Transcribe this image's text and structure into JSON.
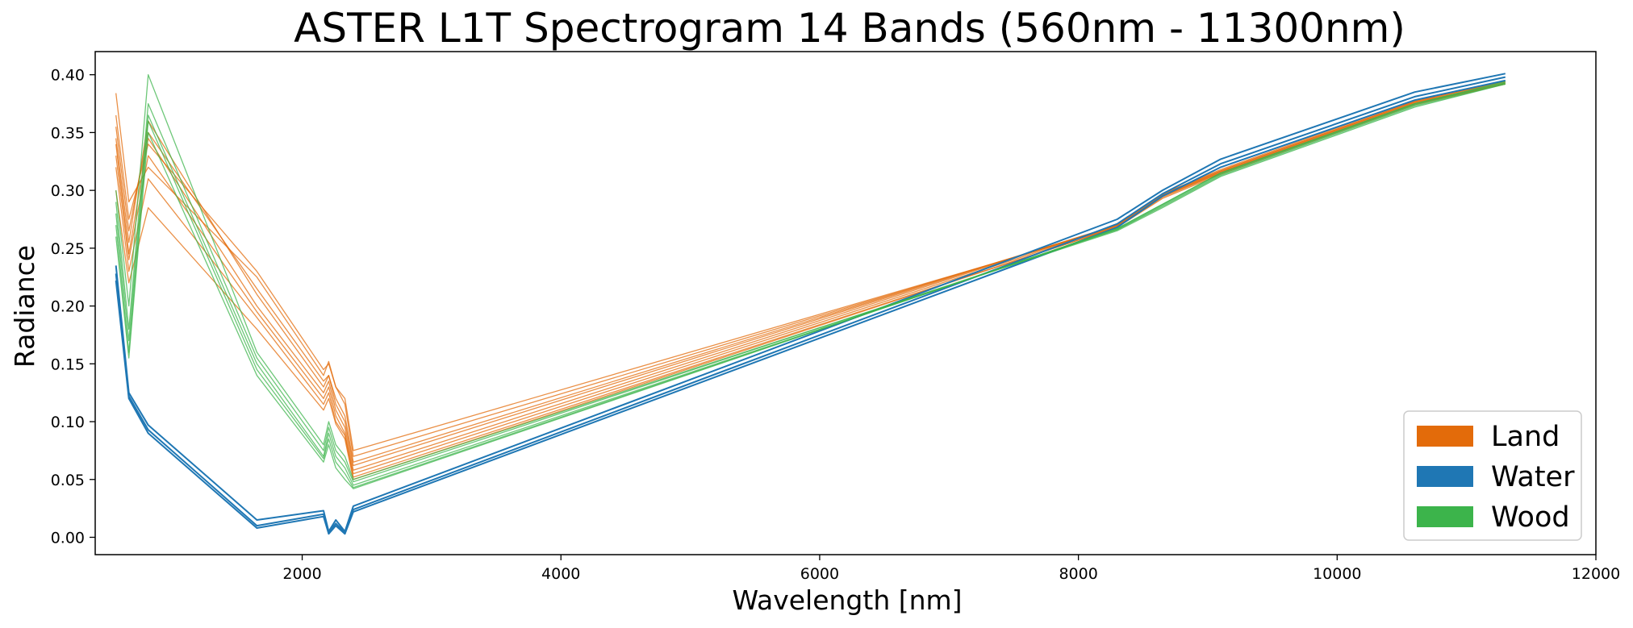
{
  "chart_data": {
    "type": "line",
    "title": "ASTER L1T Spectrogram 14 Bands (560nm - 11300nm)",
    "xlabel": "Wavelength [nm]",
    "ylabel": "Radiance",
    "xlim": [
      400,
      12000
    ],
    "ylim": [
      -0.015,
      0.42
    ],
    "x_ticks": [
      2000,
      4000,
      6000,
      8000,
      10000,
      12000
    ],
    "x_tick_labels": [
      "2000",
      "4000",
      "6000",
      "8000",
      "10000",
      "12000"
    ],
    "y_ticks": [
      0.0,
      0.05,
      0.1,
      0.15,
      0.2,
      0.25,
      0.3,
      0.35,
      0.4
    ],
    "y_tick_labels": [
      "0.00",
      "0.05",
      "0.10",
      "0.15",
      "0.20",
      "0.25",
      "0.30",
      "0.35",
      "0.40"
    ],
    "grid": false,
    "legend_position": "bottom-right",
    "x": [
      560,
      660,
      810,
      1650,
      2165,
      2205,
      2260,
      2330,
      2395,
      8300,
      8650,
      9100,
      10600,
      11300
    ],
    "series": [
      {
        "name": "Land",
        "color": "#e36b0a",
        "lines": [
          [
            0.384,
            0.29,
            0.32,
            0.225,
            0.14,
            0.152,
            0.13,
            0.12,
            0.075,
            0.268,
            0.295,
            0.315,
            0.375,
            0.392
          ],
          [
            0.365,
            0.275,
            0.34,
            0.23,
            0.145,
            0.15,
            0.13,
            0.115,
            0.07,
            0.269,
            0.296,
            0.316,
            0.376,
            0.393
          ],
          [
            0.355,
            0.265,
            0.35,
            0.215,
            0.135,
            0.14,
            0.12,
            0.105,
            0.065,
            0.27,
            0.297,
            0.317,
            0.377,
            0.394
          ],
          [
            0.345,
            0.255,
            0.36,
            0.21,
            0.13,
            0.14,
            0.115,
            0.1,
            0.062,
            0.27,
            0.297,
            0.318,
            0.378,
            0.395
          ],
          [
            0.34,
            0.245,
            0.345,
            0.2,
            0.125,
            0.135,
            0.11,
            0.095,
            0.058,
            0.27,
            0.296,
            0.317,
            0.377,
            0.394
          ],
          [
            0.33,
            0.24,
            0.33,
            0.195,
            0.12,
            0.13,
            0.105,
            0.09,
            0.055,
            0.269,
            0.295,
            0.316,
            0.376,
            0.393
          ],
          [
            0.32,
            0.23,
            0.31,
            0.19,
            0.115,
            0.125,
            0.1,
            0.088,
            0.052,
            0.268,
            0.294,
            0.315,
            0.375,
            0.392
          ],
          [
            0.3,
            0.22,
            0.285,
            0.18,
            0.11,
            0.12,
            0.098,
            0.085,
            0.05,
            0.268,
            0.293,
            0.314,
            0.374,
            0.392
          ]
        ]
      },
      {
        "name": "Water",
        "color": "#1f77b4",
        "lines": [
          [
            0.235,
            0.125,
            0.097,
            0.015,
            0.023,
            0.005,
            0.015,
            0.005,
            0.027,
            0.275,
            0.3,
            0.327,
            0.385,
            0.401
          ],
          [
            0.228,
            0.122,
            0.093,
            0.01,
            0.02,
            0.004,
            0.012,
            0.004,
            0.024,
            0.271,
            0.297,
            0.323,
            0.381,
            0.398
          ],
          [
            0.222,
            0.12,
            0.09,
            0.008,
            0.018,
            0.003,
            0.01,
            0.003,
            0.022,
            0.268,
            0.295,
            0.32,
            0.378,
            0.395
          ]
        ]
      },
      {
        "name": "Wood",
        "color": "#3cb44b",
        "lines": [
          [
            0.3,
            0.2,
            0.4,
            0.16,
            0.08,
            0.1,
            0.08,
            0.07,
            0.05,
            0.265,
            0.285,
            0.312,
            0.372,
            0.392
          ],
          [
            0.29,
            0.18,
            0.375,
            0.155,
            0.075,
            0.095,
            0.075,
            0.065,
            0.048,
            0.266,
            0.286,
            0.313,
            0.373,
            0.392
          ],
          [
            0.28,
            0.17,
            0.365,
            0.15,
            0.07,
            0.09,
            0.07,
            0.06,
            0.045,
            0.266,
            0.287,
            0.314,
            0.374,
            0.393
          ],
          [
            0.27,
            0.16,
            0.36,
            0.145,
            0.068,
            0.085,
            0.065,
            0.055,
            0.043,
            0.267,
            0.288,
            0.315,
            0.375,
            0.393
          ],
          [
            0.26,
            0.155,
            0.35,
            0.14,
            0.065,
            0.08,
            0.06,
            0.05,
            0.042,
            0.267,
            0.288,
            0.315,
            0.375,
            0.394
          ]
        ]
      }
    ],
    "legend": [
      {
        "label": "Land",
        "color": "#e36b0a"
      },
      {
        "label": "Water",
        "color": "#1f77b4"
      },
      {
        "label": "Wood",
        "color": "#3cb44b"
      }
    ]
  }
}
